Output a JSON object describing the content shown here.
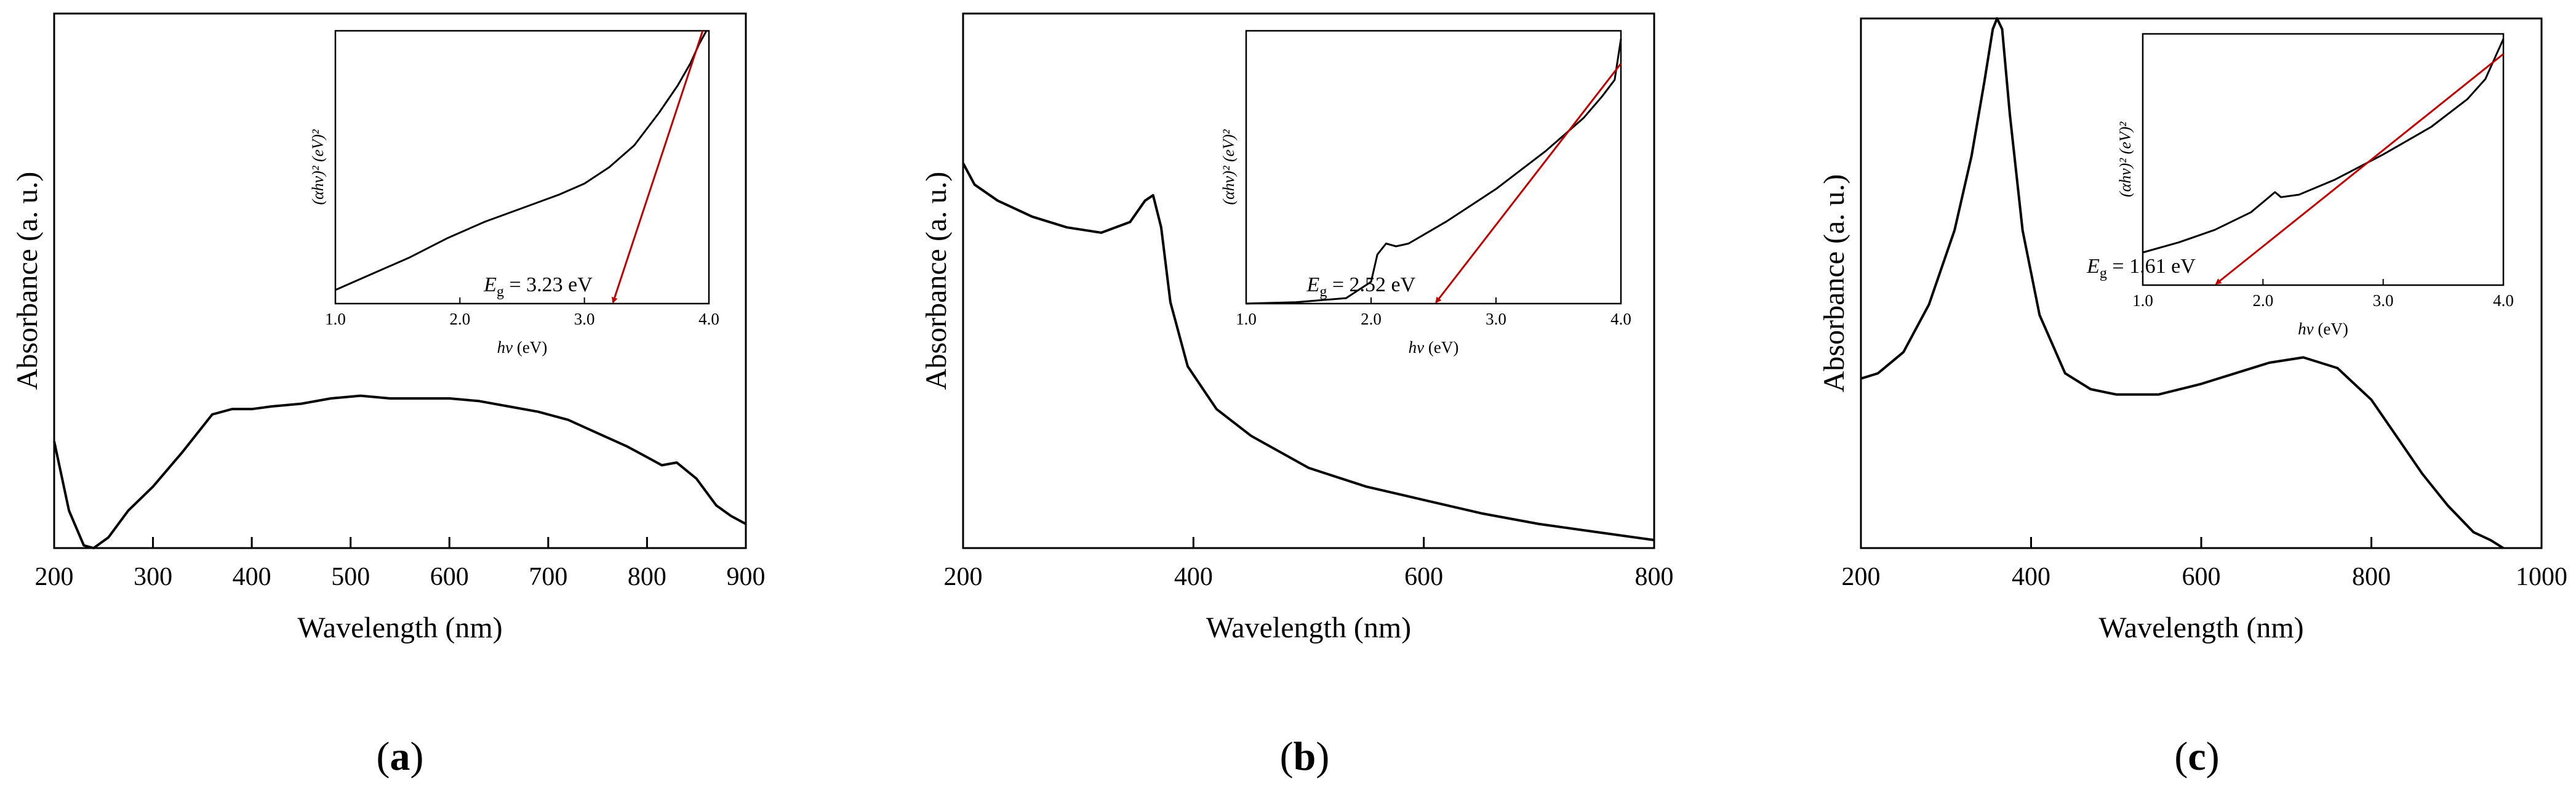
{
  "colors": {
    "line": "#000000",
    "arrow": "#c00000",
    "background": "#ffffff"
  },
  "chart_data": [
    {
      "panel": "a",
      "panel_label": {
        "open": "(",
        "letter": "a",
        "close": ")"
      },
      "type": "line",
      "xlabel": "Wavelength  (nm)",
      "ylabel": "Absorbance  (a. u.)",
      "xlim": [
        200,
        900
      ],
      "ylim": [
        0,
        1
      ],
      "xticks": [
        200,
        300,
        400,
        500,
        600,
        700,
        800,
        900
      ],
      "xtick_labels": [
        "200",
        "300",
        "400",
        "500",
        "600",
        "700",
        "800",
        "900"
      ],
      "yticks_visible": false,
      "series": [
        {
          "name": "absorbance",
          "x": [
            200,
            215,
            230,
            240,
            255,
            275,
            300,
            330,
            360,
            380,
            400,
            420,
            450,
            480,
            510,
            540,
            570,
            600,
            630,
            660,
            690,
            720,
            750,
            780,
            800,
            815,
            830,
            850,
            870,
            885,
            900
          ],
          "y": [
            0.2,
            0.07,
            0.005,
            0.0,
            0.02,
            0.07,
            0.115,
            0.18,
            0.25,
            0.26,
            0.26,
            0.265,
            0.27,
            0.28,
            0.285,
            0.28,
            0.28,
            0.28,
            0.275,
            0.265,
            0.255,
            0.24,
            0.215,
            0.19,
            0.17,
            0.155,
            0.16,
            0.13,
            0.08,
            0.06,
            0.045
          ]
        }
      ],
      "inset": {
        "xlabel_var": "hv",
        "xlabel_unit": " (eV)",
        "ylabel": "(αhv)² (eV)²",
        "xlim": [
          1.0,
          4.0
        ],
        "ylim": [
          0,
          1
        ],
        "xticks": [
          1.0,
          2.0,
          3.0,
          4.0
        ],
        "xtick_labels": [
          "1.0",
          "2.0",
          "3.0",
          "4.0"
        ],
        "series": [
          {
            "name": "tauc",
            "x": [
              1.0,
              1.3,
              1.6,
              1.9,
              2.2,
              2.5,
              2.8,
              3.0,
              3.2,
              3.4,
              3.6,
              3.75,
              3.85,
              3.92,
              3.98
            ],
            "y": [
              0.05,
              0.11,
              0.17,
              0.24,
              0.3,
              0.35,
              0.4,
              0.44,
              0.5,
              0.58,
              0.7,
              0.8,
              0.88,
              0.95,
              1.0
            ]
          }
        ],
        "tangent": {
          "x": [
            3.95,
            3.23
          ],
          "y": [
            1.0,
            0.0
          ]
        },
        "annotation": {
          "var": "E",
          "sub": "g",
          "value": " = 3.23 eV"
        }
      }
    },
    {
      "panel": "b",
      "panel_label": {
        "open": "(",
        "letter": "b",
        "close": ")"
      },
      "type": "line",
      "xlabel": "Wavelength  (nm)",
      "ylabel": "Absorbance  (a. u.)",
      "xlim": [
        200,
        800
      ],
      "ylim": [
        0,
        1
      ],
      "xticks": [
        200,
        400,
        600,
        800
      ],
      "xtick_labels": [
        "200",
        "400",
        "600",
        "800"
      ],
      "yticks_visible": false,
      "series": [
        {
          "name": "absorbance",
          "x": [
            200,
            210,
            230,
            260,
            290,
            320,
            345,
            358,
            365,
            372,
            380,
            395,
            420,
            450,
            500,
            550,
            600,
            650,
            700,
            750,
            800
          ],
          "y": [
            0.72,
            0.68,
            0.65,
            0.62,
            0.6,
            0.59,
            0.61,
            0.65,
            0.66,
            0.6,
            0.46,
            0.34,
            0.26,
            0.21,
            0.15,
            0.115,
            0.09,
            0.065,
            0.045,
            0.03,
            0.015
          ]
        }
      ],
      "inset": {
        "xlabel_var": "hv",
        "xlabel_unit": " (eV)",
        "ylabel": "(αhv)² (eV)²",
        "xlim": [
          1.0,
          4.0
        ],
        "ylim": [
          0,
          1
        ],
        "xticks": [
          1.0,
          2.0,
          3.0,
          4.0
        ],
        "xtick_labels": [
          "1.0",
          "2.0",
          "3.0",
          "4.0"
        ],
        "series": [
          {
            "name": "tauc",
            "x": [
              1.0,
              1.4,
              1.8,
              2.0,
              2.05,
              2.12,
              2.2,
              2.3,
              2.6,
              3.0,
              3.4,
              3.7,
              3.85,
              3.95,
              4.0
            ],
            "y": [
              0.0,
              0.005,
              0.02,
              0.08,
              0.18,
              0.22,
              0.21,
              0.22,
              0.3,
              0.42,
              0.56,
              0.68,
              0.76,
              0.82,
              0.97
            ]
          }
        ],
        "tangent": {
          "x": [
            4.0,
            2.52
          ],
          "y": [
            0.88,
            0.0
          ]
        },
        "annotation": {
          "var": "E",
          "sub": "g",
          "value": " = 2.52 eV"
        }
      }
    },
    {
      "panel": "c",
      "panel_label": {
        "open": "(",
        "letter": "c",
        "close": ")"
      },
      "type": "line",
      "xlabel": "Wavelength  (nm)",
      "ylabel": "Absorbance  (a. u.)",
      "xlim": [
        200,
        1000
      ],
      "ylim": [
        0,
        1
      ],
      "xticks": [
        200,
        400,
        600,
        800,
        1000
      ],
      "xtick_labels": [
        "200",
        "400",
        "600",
        "800",
        "1000"
      ],
      "yticks_visible": false,
      "series": [
        {
          "name": "absorbance",
          "x": [
            200,
            220,
            250,
            280,
            310,
            330,
            345,
            355,
            360,
            366,
            375,
            390,
            410,
            440,
            470,
            500,
            550,
            600,
            640,
            680,
            720,
            760,
            800,
            830,
            860,
            890,
            920,
            940,
            955
          ],
          "y": [
            0.32,
            0.33,
            0.37,
            0.46,
            0.6,
            0.74,
            0.88,
            0.98,
            1.0,
            0.98,
            0.82,
            0.6,
            0.44,
            0.33,
            0.3,
            0.29,
            0.29,
            0.31,
            0.33,
            0.35,
            0.36,
            0.34,
            0.28,
            0.21,
            0.14,
            0.08,
            0.03,
            0.015,
            0.0
          ]
        }
      ],
      "inset": {
        "xlabel_var": "hv",
        "xlabel_unit": " (eV)",
        "ylabel": "(αhv)² (eV)²",
        "xlim": [
          1.0,
          4.0
        ],
        "ylim": [
          0,
          1
        ],
        "xticks": [
          1.0,
          2.0,
          3.0,
          4.0
        ],
        "xtick_labels": [
          "1.0",
          "2.0",
          "3.0",
          "4.0"
        ],
        "series": [
          {
            "name": "tauc",
            "x": [
              1.0,
              1.3,
              1.6,
              1.9,
              2.05,
              2.1,
              2.15,
              2.3,
              2.6,
              3.0,
              3.4,
              3.7,
              3.85,
              4.0
            ],
            "y": [
              0.13,
              0.17,
              0.22,
              0.29,
              0.35,
              0.37,
              0.35,
              0.36,
              0.42,
              0.52,
              0.63,
              0.74,
              0.82,
              0.98
            ]
          }
        ],
        "tangent": {
          "x": [
            4.0,
            1.61
          ],
          "y": [
            0.92,
            0.0
          ]
        },
        "annotation": {
          "var": "E",
          "sub": "g",
          "value": " = 1.61 eV"
        }
      }
    }
  ]
}
